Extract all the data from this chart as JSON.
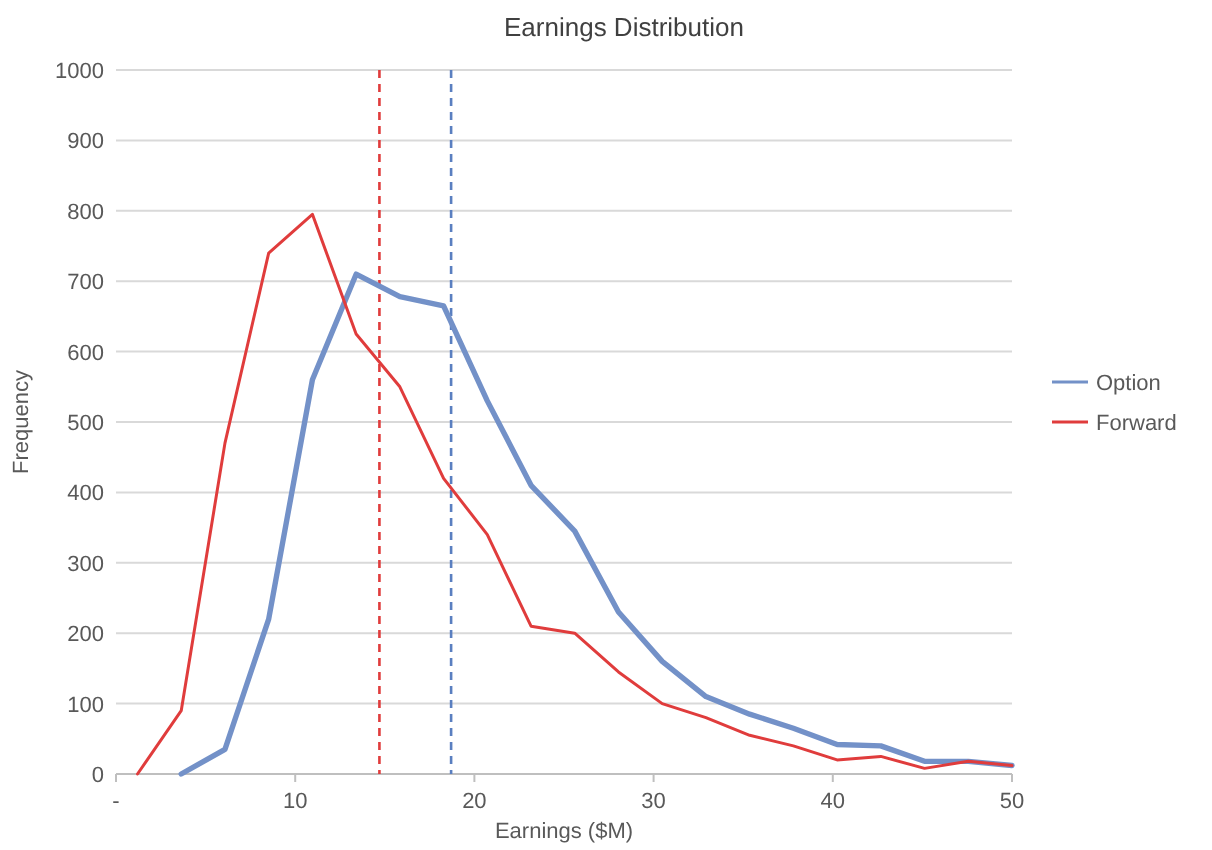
{
  "chart_data": {
    "type": "line",
    "title": "Earnings Distribution",
    "xlabel": "Earnings ($M)",
    "ylabel": "Frequency",
    "x": [
      1.2,
      3.64,
      6.08,
      8.52,
      10.96,
      13.4,
      15.84,
      18.28,
      20.72,
      23.16,
      25.6,
      28.04,
      30.48,
      32.92,
      35.36,
      37.8,
      40.24,
      42.68,
      45.12,
      47.56,
      50
    ],
    "series": [
      {
        "name": "Option",
        "color": "#7391c8",
        "values": [
          null,
          0,
          35,
          220,
          560,
          710,
          678,
          665,
          530,
          410,
          345,
          230,
          160,
          110,
          85,
          65,
          42,
          40,
          18,
          18,
          12
        ]
      },
      {
        "name": "Forward",
        "color": "#e03c3c",
        "values": [
          0,
          90,
          470,
          740,
          795,
          625,
          550,
          420,
          340,
          210,
          200,
          145,
          100,
          80,
          55,
          40,
          20,
          25,
          8,
          18,
          12
        ]
      }
    ],
    "xlim": [
      0,
      50
    ],
    "xticks": [
      {
        "value": 0,
        "label": "-"
      },
      10,
      20,
      30,
      40,
      50
    ],
    "ylim": [
      0,
      1000
    ],
    "yticks": [
      0,
      100,
      200,
      300,
      400,
      500,
      600,
      700,
      800,
      900,
      1000
    ],
    "ref_lines": [
      {
        "axis": "x",
        "value": 14.7,
        "color": "#e03c3c",
        "line_style": "dashed"
      },
      {
        "axis": "x",
        "value": 18.7,
        "color": "#5a7fc0",
        "line_style": "dashed"
      }
    ],
    "grid": "y",
    "legend": "right",
    "marker": "none",
    "line_style": "solid"
  }
}
